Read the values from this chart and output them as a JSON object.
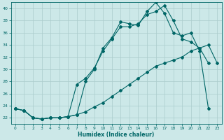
{
  "xlabel": "Humidex (Indice chaleur)",
  "bg_color": "#cce8e8",
  "grid_color": "#aacccc",
  "line_color": "#006666",
  "xlim": [
    -0.5,
    23.5
  ],
  "ylim": [
    21.0,
    41.0
  ],
  "xticks": [
    0,
    1,
    2,
    3,
    4,
    5,
    6,
    7,
    8,
    9,
    10,
    11,
    12,
    13,
    14,
    15,
    16,
    17,
    18,
    19,
    20,
    21,
    22,
    23
  ],
  "yticks": [
    22,
    24,
    26,
    28,
    30,
    32,
    34,
    36,
    38,
    40
  ],
  "line1_x": [
    0,
    1,
    2,
    3,
    4,
    5,
    6,
    7,
    8,
    9,
    10,
    11,
    12,
    13,
    14,
    15,
    16,
    17,
    18,
    19,
    20,
    21,
    22
  ],
  "line1_y": [
    23.5,
    23.2,
    22.0,
    21.8,
    22.0,
    22.0,
    22.2,
    22.5,
    28.0,
    30.0,
    33.5,
    35.2,
    37.8,
    37.5,
    37.2,
    39.5,
    41.0,
    39.2,
    36.0,
    35.5,
    36.0,
    33.0,
    23.5
  ],
  "line2_x": [
    0,
    1,
    2,
    3,
    4,
    5,
    6,
    7,
    8,
    9,
    10,
    11,
    12,
    13,
    14,
    15,
    16,
    17,
    18,
    19,
    20,
    21,
    22
  ],
  "line2_y": [
    23.5,
    23.2,
    22.0,
    21.8,
    22.0,
    22.0,
    22.2,
    27.5,
    28.5,
    30.2,
    33.0,
    35.0,
    37.0,
    37.0,
    37.5,
    39.0,
    39.5,
    40.5,
    38.0,
    35.0,
    34.5,
    33.5,
    31.0
  ],
  "line3_x": [
    0,
    1,
    2,
    3,
    4,
    5,
    6,
    7,
    8,
    9,
    10,
    11,
    12,
    13,
    14,
    15,
    16,
    17,
    18,
    19,
    20,
    21,
    22,
    23
  ],
  "line3_y": [
    23.5,
    23.2,
    22.0,
    21.8,
    22.0,
    22.0,
    22.2,
    22.5,
    23.0,
    23.8,
    24.5,
    25.5,
    26.5,
    27.5,
    28.5,
    29.5,
    30.5,
    31.0,
    31.5,
    32.0,
    33.0,
    33.5,
    34.0,
    31.0
  ]
}
